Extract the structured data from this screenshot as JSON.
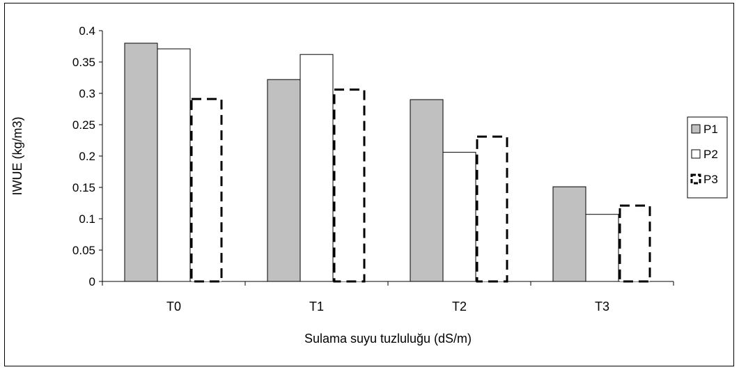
{
  "chart_data": {
    "type": "bar",
    "xlabel": "Sulama suyu tuzluluğu (dS/m)",
    "ylabel": "IWUE (kg/m3)",
    "categories": [
      "T0",
      "T1",
      "T2",
      "T3"
    ],
    "ylim": [
      0,
      0.4
    ],
    "yticks": [
      0,
      0.05,
      0.1,
      0.15,
      0.2,
      0.25,
      0.3,
      0.35,
      0.4
    ],
    "ytick_labels": [
      "0",
      "0.05",
      "0.1",
      "0.15",
      "0.2",
      "0.25",
      "0.3",
      "0.35",
      "0.4"
    ],
    "grid": false,
    "legend_position": "right",
    "series": [
      {
        "name": "P1",
        "values": [
          0.38,
          0.322,
          0.29,
          0.151
        ],
        "fill": "#c0c0c0",
        "stroke": "#000000",
        "style": "solid"
      },
      {
        "name": "P2",
        "values": [
          0.371,
          0.362,
          0.206,
          0.107
        ],
        "fill": "#ffffff",
        "stroke": "#000000",
        "style": "solid"
      },
      {
        "name": "P3",
        "values": [
          0.291,
          0.306,
          0.231,
          0.121
        ],
        "fill": "#ffffff",
        "stroke": "#000000",
        "style": "dashed"
      }
    ]
  }
}
